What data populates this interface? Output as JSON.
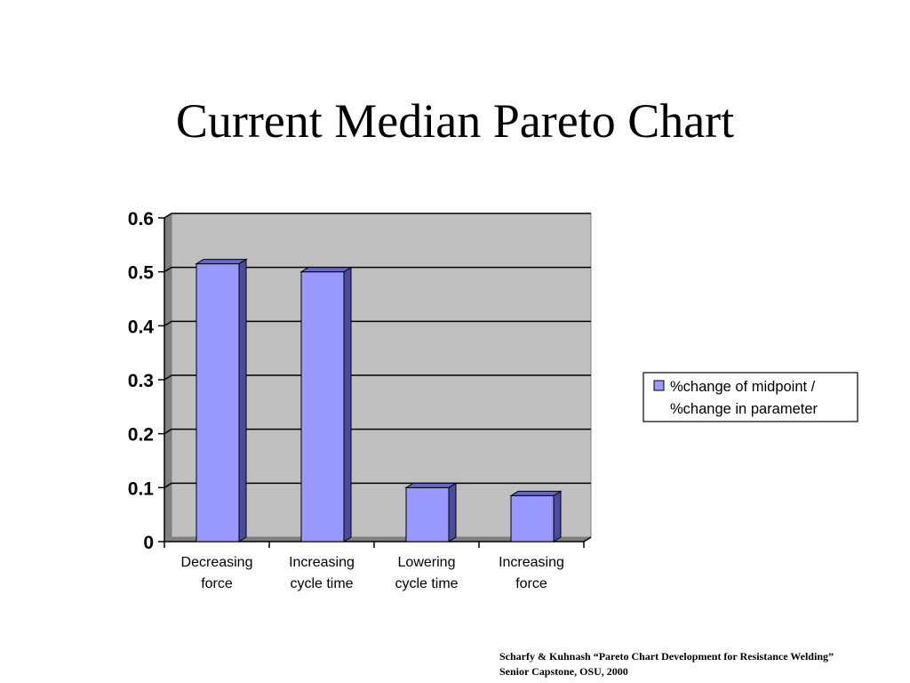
{
  "slide": {
    "title": "Current Median Pareto Chart",
    "citation_line1": "Scharfy & Kuhnash “Pareto Chart Development for Resistance  Welding”",
    "citation_line2": "Senior Capstone, OSU, 2000"
  },
  "chart_data": {
    "type": "bar",
    "title": "",
    "xlabel": "",
    "ylabel": "",
    "categories": [
      [
        "Decreasing",
        "force"
      ],
      [
        "Increasing",
        "cycle time"
      ],
      [
        "Lowering",
        "cycle time"
      ],
      [
        "Increasing",
        "force"
      ]
    ],
    "series": [
      {
        "name_lines": [
          "%change of midpoint /",
          "%change in parameter"
        ],
        "values": [
          0.515,
          0.5,
          0.1,
          0.085
        ]
      }
    ],
    "ylim": [
      0,
      0.6
    ],
    "yticks": [
      "0",
      "0.1",
      "0.2",
      "0.3",
      "0.4",
      "0.5",
      "0.6"
    ],
    "grid": true,
    "legend_position": "right",
    "colors": {
      "bar_front": "#9999FF",
      "bar_side": "#4B4B9E",
      "bar_top": "#6666CC",
      "plot_wall": "#C0C0C0",
      "plot_floor": "#808080",
      "gridline": "#000000"
    }
  }
}
